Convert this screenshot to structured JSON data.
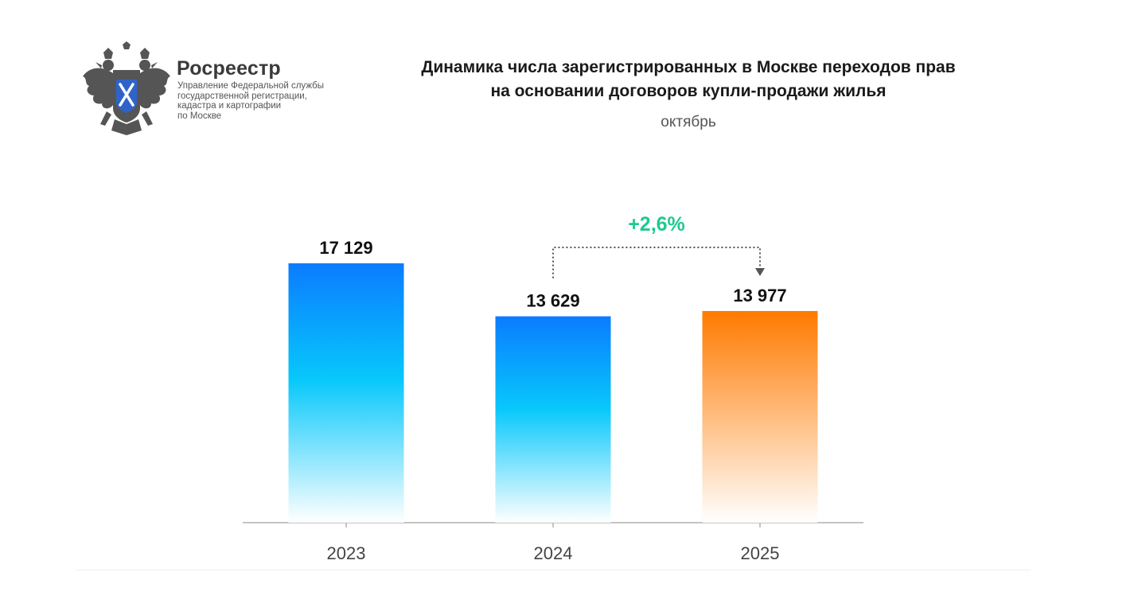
{
  "header": {
    "brand_name": "Росреестр",
    "brand_lines": [
      "Управление Федеральной службы",
      "государственной регистрации,",
      "кадастра и картографии",
      "по Москве"
    ],
    "emblem_icon": "double-headed-eagle-emblem"
  },
  "chart_data": {
    "type": "bar",
    "title_lines": [
      "Динамика числа зарегистрированных в Москве переходов прав",
      "на основании договоров купли-продажи жилья"
    ],
    "subtitle": "октябрь",
    "categories": [
      "2023",
      "2024",
      "2025"
    ],
    "values": [
      17129,
      13629,
      13977
    ],
    "value_labels": [
      "17 129",
      "13 629",
      "13 977"
    ],
    "ylim": [
      0,
      17600
    ],
    "grid": false,
    "annotation": {
      "text": "+2,6%",
      "from": "2024",
      "to": "2025"
    },
    "colors": {
      "blue_top": "#0a7cff",
      "blue_mid": "#08c8fb",
      "blue_bottom": "#ffffff",
      "orange_top": "#ff7a00",
      "orange_bottom": "#ffffff",
      "annotation": "#1ec98f",
      "axis": "#b0b0b0"
    },
    "bar_colors": [
      "blue",
      "blue",
      "orange"
    ]
  }
}
